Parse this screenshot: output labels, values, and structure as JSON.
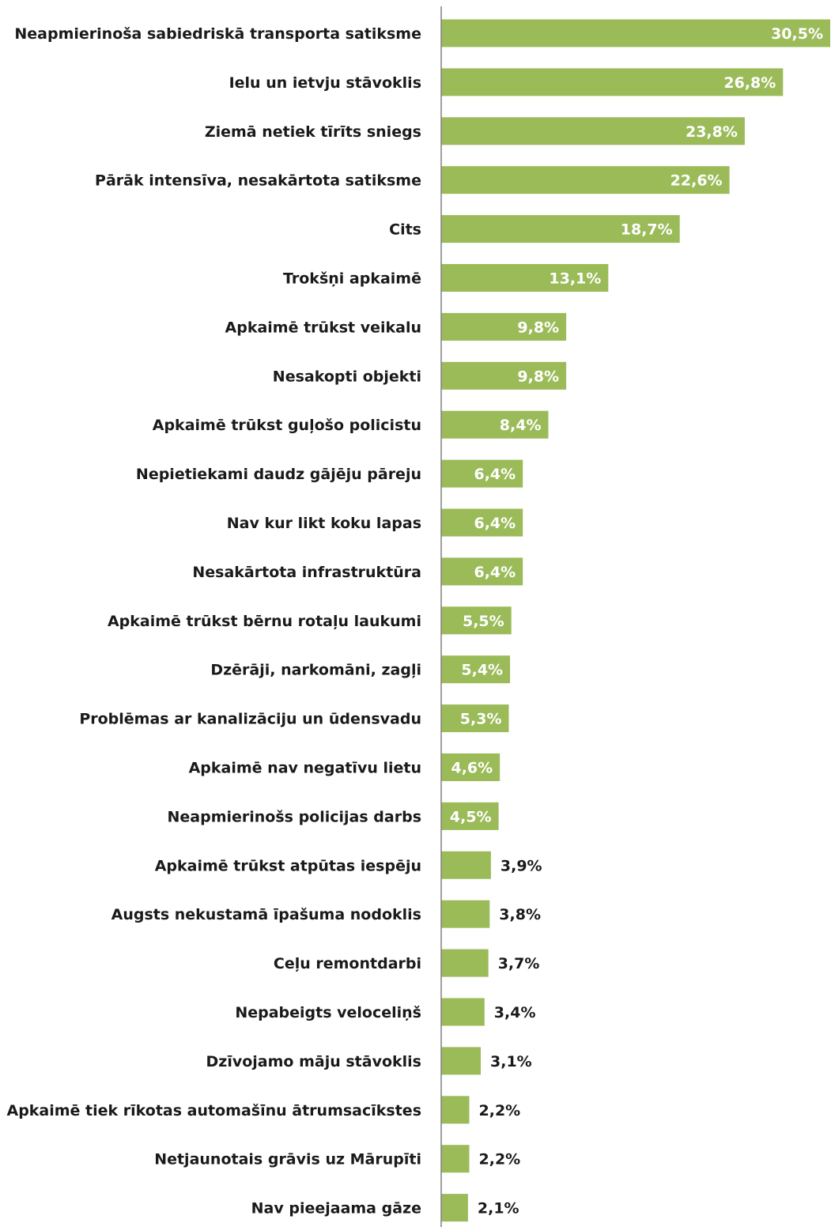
{
  "chart_data": {
    "type": "bar",
    "orientation": "horizontal",
    "title": "",
    "xlabel": "",
    "ylabel": "",
    "bar_color": "#9BBB59",
    "value_label_color_inside": "#ffffff",
    "value_label_color_outside": "#1a1a1a",
    "axis_color": "#808080",
    "xlim": [
      0,
      30.5
    ],
    "grid": false,
    "legend": "none",
    "categories": [
      "Neapmierinoša sabiedriskā transporta satiksme",
      "Ielu un ietvju stāvoklis",
      "Ziemā netiek tīrīts sniegs",
      "Pārāk intensīva, nesakārtota satiksme",
      "Cits",
      "Trokšņi apkaimē",
      "Apkaimē trūkst veikalu",
      "Nesakopti objekti",
      "Apkaimē trūkst guļošo policistu",
      "Nepietiekami daudz gājēju pāreju",
      "Nav kur likt koku lapas",
      "Nesakārtota infrastruktūra",
      "Apkaimē trūkst bērnu rotaļu laukumi",
      "Dzērāji, narkomāni, zagļi",
      "Problēmas ar kanalizāciju un ūdensvadu",
      "Apkaimē nav negatīvu lietu",
      "Neapmierinošs policijas darbs",
      "Apkaimē trūkst atpūtas iespēju",
      "Augsts nekustamā īpašuma nodoklis",
      "Ceļu remontdarbi",
      "Nepabeigts veloceliņš",
      "Dzīvojamo māju stāvoklis",
      "Apkaimē tiek rīkotas automašīnu ātrumsacīkstes",
      "Netjaunotais grāvis uz Mārupīti",
      "Nav pieejaama gāze"
    ],
    "values": [
      30.5,
      26.8,
      23.8,
      22.6,
      18.7,
      13.1,
      9.8,
      9.8,
      8.4,
      6.4,
      6.4,
      6.4,
      5.5,
      5.4,
      5.3,
      4.6,
      4.5,
      3.9,
      3.8,
      3.7,
      3.4,
      3.1,
      2.2,
      2.2,
      2.1
    ],
    "value_labels": [
      "30,5%",
      "26,8%",
      "23,8%",
      "22,6%",
      "18,7%",
      "13,1%",
      "9,8%",
      "9,8%",
      "8,4%",
      "6,4%",
      "6,4%",
      "6,4%",
      "5,5%",
      "5,4%",
      "5,3%",
      "4,6%",
      "4,5%",
      "3,9%",
      "3,8%",
      "3,7%",
      "3,4%",
      "3,1%",
      "2,2%",
      "2,2%",
      "2,1%"
    ]
  }
}
